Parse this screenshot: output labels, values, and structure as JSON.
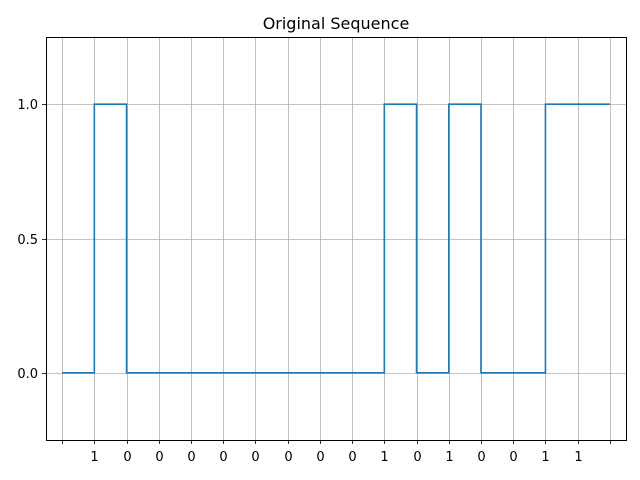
{
  "chart_data": {
    "type": "line",
    "step": "post",
    "title": "Original Sequence",
    "xlabel": "",
    "ylabel": "",
    "x_tick_labels": [
      "",
      "1",
      "0",
      "0",
      "0",
      "0",
      "0",
      "0",
      "0",
      "0",
      "1",
      "0",
      "1",
      "0",
      "0",
      "1",
      "1",
      ""
    ],
    "xlim": [
      -0.5,
      17.5
    ],
    "ylim": [
      -0.25,
      1.25
    ],
    "y_ticks": [
      0.0,
      0.5,
      1.0
    ],
    "y_tick_labels": [
      "0.0",
      "0.5",
      "1.0"
    ],
    "grid": true,
    "series": [
      {
        "x": [
          0,
          1,
          2,
          3,
          4,
          5,
          6,
          7,
          8,
          9,
          10,
          11,
          12,
          13,
          14,
          15,
          16,
          17
        ],
        "values": [
          0,
          1,
          0,
          0,
          0,
          0,
          0,
          0,
          0,
          0,
          1,
          0,
          1,
          0,
          0,
          1,
          1,
          1
        ],
        "color": "#1f77b4"
      }
    ]
  }
}
